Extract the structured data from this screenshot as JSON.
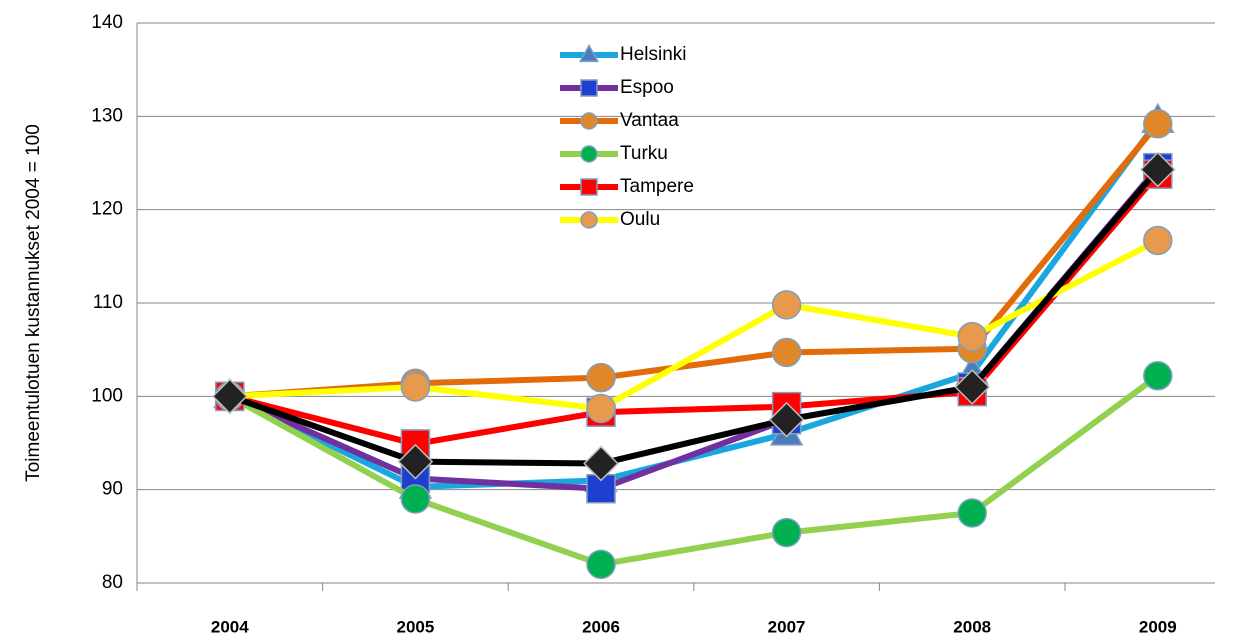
{
  "chart_data": {
    "type": "line",
    "y_label": "Toimeentulotuen kustannukset 2004 = 100",
    "categories": [
      "2004",
      "2005",
      "2006",
      "2007",
      "2008",
      "2009"
    ],
    "ylim": [
      80,
      140
    ],
    "yticks": [
      80,
      90,
      100,
      110,
      120,
      130,
      140
    ],
    "grid": true,
    "series": [
      {
        "name": "Helsinki",
        "color": "#1aa7e0",
        "marker": "triangle",
        "marker_color": "#4a7ebb",
        "values": [
          100,
          90.3,
          91,
          96,
          102.5,
          129.5
        ]
      },
      {
        "name": "Espoo",
        "color": "#7030a0",
        "marker": "square",
        "marker_color": "#1f3fd0",
        "values": [
          100,
          91.2,
          90.1,
          97.5,
          101,
          124.5
        ]
      },
      {
        "name": "Vantaa",
        "color": "#e36c0a",
        "marker": "circle",
        "marker_color": "#e0872a",
        "values": [
          100,
          101.4,
          102,
          104.7,
          105.1,
          129.2
        ]
      },
      {
        "name": "Turku",
        "color": "#92d050",
        "marker": "circle",
        "marker_color": "#00b050",
        "values": [
          100,
          89,
          82,
          85.4,
          87.5,
          102.2
        ]
      },
      {
        "name": "Tampere",
        "color": "#ff0000",
        "marker": "square",
        "marker_color": "#ff0000",
        "values": [
          100,
          94.9,
          98.3,
          98.9,
          100.5,
          123.8
        ]
      },
      {
        "name": "Oulu",
        "color": "#ffff00",
        "marker": "circle",
        "marker_color": "#e79a4e",
        "values": [
          100,
          101,
          98.7,
          109.8,
          106.4,
          116.7
        ]
      },
      {
        "color": "#000000",
        "marker": "diamond",
        "marker_color": "#222222",
        "values": [
          100,
          93,
          92.8,
          97.5,
          101,
          124.3
        ]
      }
    ]
  }
}
